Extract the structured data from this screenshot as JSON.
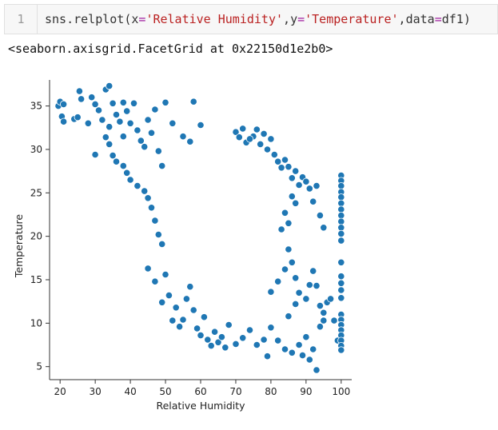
{
  "cell": {
    "prompt_number": "1",
    "code_tokens": [
      {
        "text": "sns.relplot",
        "kind": "plain"
      },
      {
        "text": "(",
        "kind": "plain"
      },
      {
        "text": "x",
        "kind": "plain"
      },
      {
        "text": "=",
        "kind": "op"
      },
      {
        "text": "'Relative Humidity'",
        "kind": "str"
      },
      {
        "text": ",",
        "kind": "plain"
      },
      {
        "text": "y",
        "kind": "plain"
      },
      {
        "text": "=",
        "kind": "op"
      },
      {
        "text": "'Temperature'",
        "kind": "str"
      },
      {
        "text": ",",
        "kind": "plain"
      },
      {
        "text": "data",
        "kind": "plain"
      },
      {
        "text": "=",
        "kind": "op"
      },
      {
        "text": "df1",
        "kind": "plain"
      },
      {
        "text": ")",
        "kind": "plain"
      }
    ],
    "output_text": "<seaborn.axisgrid.FacetGrid at 0x22150d1e2b0>"
  },
  "colors": {
    "marker_fill": "#1f77b4",
    "marker_edge": "#ffffff",
    "axis": "#333333"
  },
  "chart_data": {
    "type": "scatter",
    "xlabel": "Relative Humidity",
    "ylabel": "Temperature",
    "xlim": [
      17,
      103
    ],
    "ylim": [
      3.5,
      38
    ],
    "xticks": [
      20,
      30,
      40,
      50,
      60,
      70,
      80,
      90,
      100
    ],
    "yticks": [
      5,
      10,
      15,
      20,
      25,
      30,
      35
    ],
    "grid": false,
    "series": [
      {
        "points": [
          [
            19.5,
            35.0
          ],
          [
            20,
            35.5
          ],
          [
            21,
            35.2
          ],
          [
            20.5,
            33.8
          ],
          [
            21,
            33.2
          ],
          [
            24,
            33.5
          ],
          [
            25,
            33.7
          ],
          [
            25.5,
            36.7
          ],
          [
            26,
            35.8
          ],
          [
            28,
            33.0
          ],
          [
            29,
            36.0
          ],
          [
            30,
            35.2
          ],
          [
            30,
            29.4
          ],
          [
            31,
            34.5
          ],
          [
            32,
            33.4
          ],
          [
            33,
            36.9
          ],
          [
            34,
            37.3
          ],
          [
            34,
            32.6
          ],
          [
            35,
            35.3
          ],
          [
            36,
            34.0
          ],
          [
            37,
            33.2
          ],
          [
            38,
            31.5
          ],
          [
            38,
            35.4
          ],
          [
            39,
            34.4
          ],
          [
            40,
            33.0
          ],
          [
            41,
            35.3
          ],
          [
            42,
            32.2
          ],
          [
            43,
            31.0
          ],
          [
            44,
            30.3
          ],
          [
            45,
            33.4
          ],
          [
            46,
            31.9
          ],
          [
            47,
            34.6
          ],
          [
            48,
            29.8
          ],
          [
            49,
            28.1
          ],
          [
            50,
            35.4
          ],
          [
            52,
            33.0
          ],
          [
            55,
            31.5
          ],
          [
            57,
            30.9
          ],
          [
            58,
            35.5
          ],
          [
            60,
            32.8
          ],
          [
            33,
            31.4
          ],
          [
            34,
            30.6
          ],
          [
            35,
            29.3
          ],
          [
            36,
            28.6
          ],
          [
            38,
            28.1
          ],
          [
            39,
            27.3
          ],
          [
            40,
            26.5
          ],
          [
            42,
            25.8
          ],
          [
            44,
            25.2
          ],
          [
            45,
            24.4
          ],
          [
            46,
            23.3
          ],
          [
            47,
            21.8
          ],
          [
            48,
            20.2
          ],
          [
            49,
            19.1
          ],
          [
            45,
            16.3
          ],
          [
            47,
            14.8
          ],
          [
            49,
            12.4
          ],
          [
            50,
            15.6
          ],
          [
            51,
            13.2
          ],
          [
            52,
            10.3
          ],
          [
            53,
            11.8
          ],
          [
            54,
            9.6
          ],
          [
            55,
            10.4
          ],
          [
            56,
            12.8
          ],
          [
            57,
            14.2
          ],
          [
            58,
            11.5
          ],
          [
            59,
            9.4
          ],
          [
            60,
            8.6
          ],
          [
            61,
            10.7
          ],
          [
            62,
            8.1
          ],
          [
            63,
            7.4
          ],
          [
            64,
            9.0
          ],
          [
            65,
            7.8
          ],
          [
            66,
            8.4
          ],
          [
            67,
            7.2
          ],
          [
            68,
            9.8
          ],
          [
            70,
            7.6
          ],
          [
            72,
            8.3
          ],
          [
            74,
            9.2
          ],
          [
            76,
            7.5
          ],
          [
            78,
            8.1
          ],
          [
            79,
            6.2
          ],
          [
            80,
            9.5
          ],
          [
            82,
            8.0
          ],
          [
            84,
            7.0
          ],
          [
            85,
            10.8
          ],
          [
            86,
            6.6
          ],
          [
            87,
            12.2
          ],
          [
            88,
            7.5
          ],
          [
            89,
            6.3
          ],
          [
            90,
            8.4
          ],
          [
            91,
            5.8
          ],
          [
            92,
            7.0
          ],
          [
            93,
            4.6
          ],
          [
            94,
            9.6
          ],
          [
            95,
            11.2
          ],
          [
            96,
            12.4
          ],
          [
            97,
            12.8
          ],
          [
            98,
            10.3
          ],
          [
            99,
            8.0
          ],
          [
            80,
            13.6
          ],
          [
            82,
            14.8
          ],
          [
            84,
            16.2
          ],
          [
            85,
            18.5
          ],
          [
            86,
            17.0
          ],
          [
            87,
            15.2
          ],
          [
            88,
            13.5
          ],
          [
            90,
            12.8
          ],
          [
            91,
            14.4
          ],
          [
            92,
            16.0
          ],
          [
            93,
            14.3
          ],
          [
            94,
            12.0
          ],
          [
            95,
            10.3
          ],
          [
            83,
            20.8
          ],
          [
            84,
            22.7
          ],
          [
            85,
            21.5
          ],
          [
            86,
            24.6
          ],
          [
            87,
            23.8
          ],
          [
            88,
            25.9
          ],
          [
            89,
            26.8
          ],
          [
            90,
            26.3
          ],
          [
            91,
            25.5
          ],
          [
            92,
            24.0
          ],
          [
            93,
            25.8
          ],
          [
            94,
            22.4
          ],
          [
            95,
            21.0
          ],
          [
            75,
            31.5
          ],
          [
            76,
            32.3
          ],
          [
            77,
            30.6
          ],
          [
            78,
            31.8
          ],
          [
            79,
            30.0
          ],
          [
            80,
            31.2
          ],
          [
            81,
            29.4
          ],
          [
            82,
            28.6
          ],
          [
            83,
            27.9
          ],
          [
            84,
            28.8
          ],
          [
            85,
            28.0
          ],
          [
            86,
            26.7
          ],
          [
            87,
            27.5
          ],
          [
            70,
            32.0
          ],
          [
            71,
            31.4
          ],
          [
            72,
            32.4
          ],
          [
            73,
            30.8
          ],
          [
            74,
            31.2
          ],
          [
            100,
            27.0
          ],
          [
            100,
            26.4
          ],
          [
            100,
            25.8
          ],
          [
            100,
            25.1
          ],
          [
            100,
            24.5
          ],
          [
            100,
            23.8
          ],
          [
            100,
            23.1
          ],
          [
            100,
            22.4
          ],
          [
            100,
            21.7
          ],
          [
            100,
            21.0
          ],
          [
            100,
            20.3
          ],
          [
            100,
            19.5
          ],
          [
            100,
            17.0
          ],
          [
            100,
            15.4
          ],
          [
            100,
            14.6
          ],
          [
            100,
            13.8
          ],
          [
            100,
            12.9
          ],
          [
            100,
            11.0
          ],
          [
            100,
            10.4
          ],
          [
            100,
            9.8
          ],
          [
            100,
            9.2
          ],
          [
            100,
            8.6
          ],
          [
            100,
            8.0
          ],
          [
            100,
            7.4
          ],
          [
            100,
            6.9
          ]
        ]
      }
    ]
  }
}
